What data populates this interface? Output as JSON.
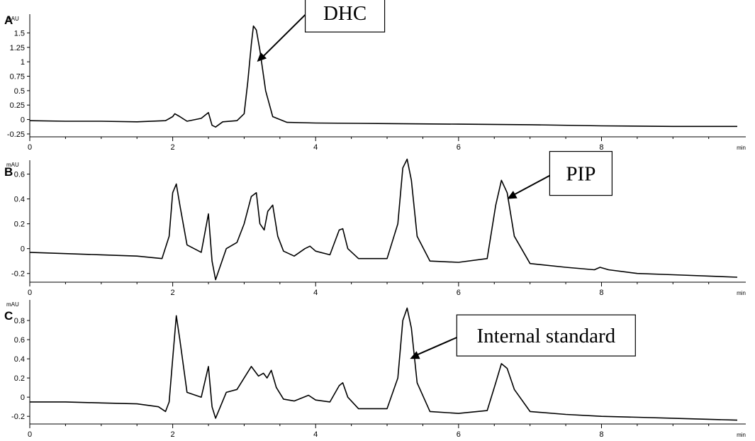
{
  "colors": {
    "trace": "#000000",
    "background": "#ffffff"
  },
  "chart_data": [
    {
      "type": "line",
      "panel_label": "A",
      "ylabel": "mAU",
      "xlabel": "min",
      "xlim": [
        0,
        9.9
      ],
      "ylim": [
        -0.3,
        1.8
      ],
      "xticks": [
        "0",
        "2",
        "4",
        "6",
        "8"
      ],
      "yticks": [
        "-0.25",
        "0",
        "0.25",
        "0.5",
        "0.75",
        "1",
        "1.25",
        "1.5"
      ],
      "annotation": {
        "text": "DHC",
        "x": 3.18,
        "y": 1.0
      },
      "series": [
        {
          "x": [
            0,
            0.5,
            1.0,
            1.5,
            1.9,
            2.0,
            2.03,
            2.1,
            2.2,
            2.4,
            2.5,
            2.55,
            2.6,
            2.7,
            2.9,
            3.0,
            3.05,
            3.1,
            3.13,
            3.17,
            3.22,
            3.3,
            3.4,
            3.6,
            4.0,
            5.0,
            6.0,
            7.0,
            8.0,
            9.0,
            9.9
          ],
          "y": [
            -0.02,
            -0.03,
            -0.03,
            -0.04,
            -0.02,
            0.05,
            0.1,
            0.05,
            -0.03,
            0.02,
            0.12,
            -0.1,
            -0.13,
            -0.04,
            -0.02,
            0.1,
            0.65,
            1.3,
            1.62,
            1.55,
            1.2,
            0.5,
            0.05,
            -0.05,
            -0.06,
            -0.07,
            -0.08,
            -0.09,
            -0.11,
            -0.12,
            -0.12
          ]
        }
      ]
    },
    {
      "type": "line",
      "panel_label": "B",
      "ylabel": "mAU",
      "xlabel": "min",
      "xlim": [
        0,
        9.9
      ],
      "ylim": [
        -0.27,
        0.7
      ],
      "xticks": [
        "0",
        "2",
        "4",
        "6",
        "8"
      ],
      "yticks": [
        "-0.2",
        "0",
        "0.2",
        "0.4",
        "0.6"
      ],
      "annotation": {
        "text": "PIP",
        "x": 6.68,
        "y": 0.4
      },
      "series": [
        {
          "x": [
            0,
            0.5,
            1.0,
            1.5,
            1.85,
            1.95,
            2.0,
            2.05,
            2.1,
            2.2,
            2.4,
            2.5,
            2.55,
            2.6,
            2.75,
            2.9,
            3.0,
            3.1,
            3.17,
            3.22,
            3.28,
            3.33,
            3.4,
            3.47,
            3.55,
            3.7,
            3.85,
            3.92,
            4.0,
            4.2,
            4.33,
            4.38,
            4.45,
            4.6,
            5.0,
            5.15,
            5.22,
            5.28,
            5.34,
            5.42,
            5.6,
            6.0,
            6.4,
            6.52,
            6.6,
            6.68,
            6.78,
            7.0,
            7.5,
            7.9,
            7.98,
            8.1,
            8.5,
            9.0,
            9.9
          ],
          "y": [
            -0.03,
            -0.04,
            -0.05,
            -0.06,
            -0.08,
            0.1,
            0.45,
            0.52,
            0.35,
            0.03,
            -0.03,
            0.28,
            -0.1,
            -0.25,
            0.0,
            0.05,
            0.2,
            0.42,
            0.45,
            0.2,
            0.15,
            0.3,
            0.35,
            0.1,
            -0.02,
            -0.06,
            0.0,
            0.02,
            -0.02,
            -0.05,
            0.15,
            0.16,
            0.0,
            -0.08,
            -0.08,
            0.2,
            0.65,
            0.72,
            0.55,
            0.1,
            -0.1,
            -0.11,
            -0.08,
            0.35,
            0.55,
            0.45,
            0.1,
            -0.12,
            -0.15,
            -0.17,
            -0.15,
            -0.17,
            -0.2,
            -0.21,
            -0.23
          ]
        }
      ]
    },
    {
      "type": "line",
      "panel_label": "C",
      "ylabel": "mAU",
      "xlabel": "min",
      "xlim": [
        0,
        9.9
      ],
      "ylim": [
        -0.28,
        1.0
      ],
      "xticks": [
        "0",
        "2",
        "4",
        "6",
        "8"
      ],
      "yticks": [
        "-0.2",
        "0",
        "0.2",
        "0.4",
        "0.6",
        "0.8"
      ],
      "annotation": {
        "text": "Internal standard",
        "x": 5.32,
        "y": 0.4
      },
      "series": [
        {
          "x": [
            0,
            0.5,
            1.0,
            1.5,
            1.8,
            1.9,
            1.95,
            2.0,
            2.05,
            2.1,
            2.2,
            2.4,
            2.5,
            2.55,
            2.6,
            2.75,
            2.9,
            3.0,
            3.1,
            3.2,
            3.27,
            3.32,
            3.38,
            3.45,
            3.55,
            3.7,
            3.9,
            4.0,
            4.2,
            4.33,
            4.38,
            4.45,
            4.6,
            5.0,
            5.15,
            5.22,
            5.28,
            5.34,
            5.42,
            5.6,
            6.0,
            6.4,
            6.52,
            6.6,
            6.68,
            6.78,
            7.0,
            7.5,
            8.0,
            8.5,
            9.0,
            9.9
          ],
          "y": [
            -0.05,
            -0.05,
            -0.06,
            -0.07,
            -0.1,
            -0.15,
            -0.05,
            0.4,
            0.85,
            0.6,
            0.05,
            0.0,
            0.32,
            -0.1,
            -0.22,
            0.05,
            0.08,
            0.2,
            0.32,
            0.22,
            0.25,
            0.2,
            0.28,
            0.1,
            -0.02,
            -0.04,
            0.02,
            -0.03,
            -0.05,
            0.12,
            0.15,
            0.0,
            -0.12,
            -0.12,
            0.2,
            0.8,
            0.93,
            0.72,
            0.15,
            -0.15,
            -0.17,
            -0.14,
            0.15,
            0.35,
            0.3,
            0.08,
            -0.15,
            -0.18,
            -0.2,
            -0.21,
            -0.22,
            -0.24
          ]
        }
      ]
    }
  ]
}
